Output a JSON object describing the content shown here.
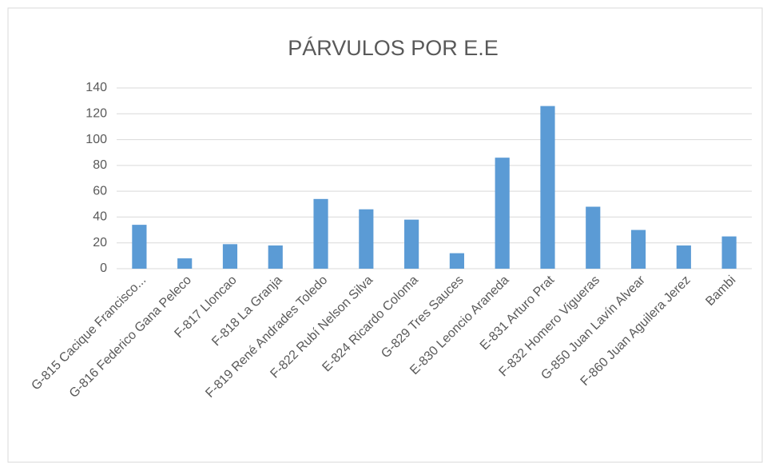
{
  "chart_data": {
    "type": "bar",
    "title": "PÁRVULOS POR E.E",
    "categories": [
      "G-815 Cacique Francisco...",
      "G-816 Federico Gana Peleco",
      "F-817 Lloncao",
      "F-818 La Granja",
      "F-819 René Andrades Toledo",
      "F-822 Rubí Nelson Silva",
      "E-824 Ricardo Coloma",
      "G-829 Tres Sauces",
      "E-830 Leoncio Araneda",
      "E-831 Arturo Prat",
      "F-832 Homero Vigueras",
      "G-850 Juan Lavín Alvear",
      "F-860 Juan Aguilera Jerez",
      "Bambi"
    ],
    "values": [
      34,
      8,
      19,
      18,
      54,
      46,
      38,
      12,
      86,
      126,
      48,
      30,
      18,
      25
    ],
    "color": "#5b9bd5",
    "ylim": [
      0,
      140
    ],
    "yticks": [
      0,
      20,
      40,
      60,
      80,
      100,
      120,
      140
    ],
    "grid": true
  }
}
